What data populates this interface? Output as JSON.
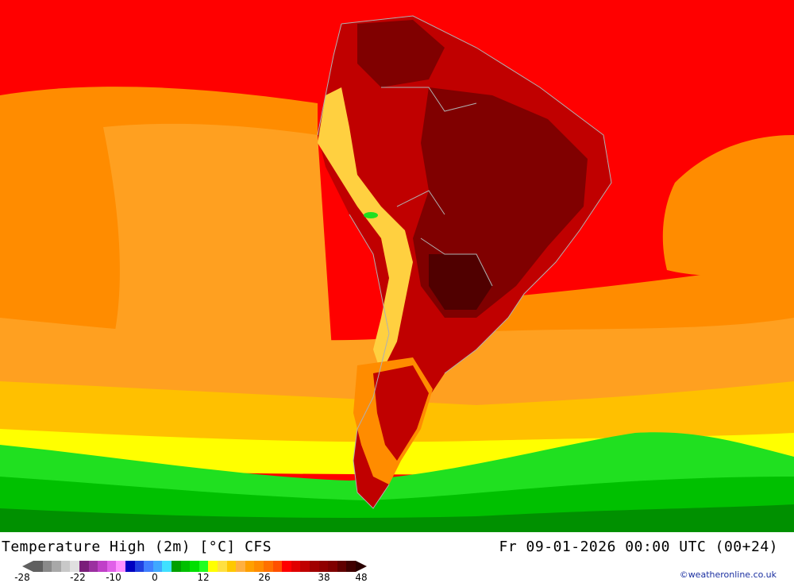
{
  "title": "Temperature High (2m) [°C] CFS",
  "datetime": "Fr 09-01-2026 00:00 UTC (00+24)",
  "credit": "©weatheronline.co.uk",
  "legend": {
    "ticks": [
      "-28",
      "-22",
      "-10",
      "0",
      "12",
      "26",
      "38",
      "48"
    ],
    "colors": [
      "#606060",
      "#8a8a8a",
      "#a8a8a8",
      "#c8c8c8",
      "#e0e0e0",
      "#7a1e7a",
      "#9b30a0",
      "#c040c8",
      "#e060e8",
      "#ff90ff",
      "#0000c0",
      "#2040e0",
      "#4080ff",
      "#40a8ff",
      "#40e0ff",
      "#00a000",
      "#00c000",
      "#00e000",
      "#20ff20",
      "#ffff00",
      "#ffe040",
      "#ffc800",
      "#ffb040",
      "#ffa000",
      "#ff8c00",
      "#ff7000",
      "#ff5000",
      "#ff0000",
      "#e00000",
      "#c00000",
      "#a00000",
      "#900000",
      "#800000",
      "#600000",
      "#400000"
    ]
  },
  "map": {
    "region": "South America",
    "colors": {
      "ocean_warm": "#ff0000",
      "ocean_orange": "#ff8c00",
      "ocean_light_orange": "#ffa020",
      "ocean_yellow_orange": "#ffc000",
      "ocean_yellow": "#ffff00",
      "green_light": "#20e020",
      "green": "#00c000",
      "green_dark": "#009000",
      "land_hot": "#c00000",
      "land_very_hot": "#800000",
      "land_extreme": "#500000",
      "andes": "#ffd040",
      "border": "#b0b0b0"
    }
  }
}
